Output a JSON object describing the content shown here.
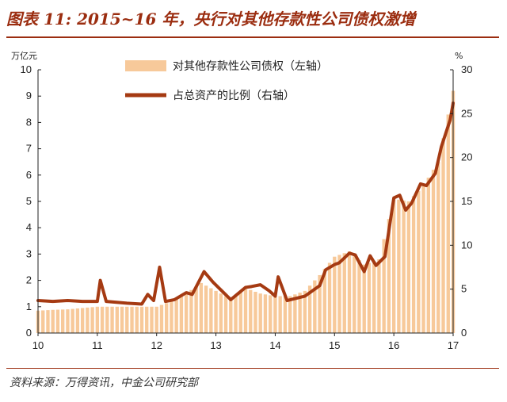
{
  "title": "图表 11: 2015~16 年，央行对其他存款性公司债权激增",
  "source": "资料来源：万得资讯，中金公司研究部",
  "chart_data": {
    "type": "bar+line",
    "left_axis": {
      "unit": "万亿元",
      "ylim": [
        0,
        10
      ],
      "ticks": [
        "0",
        "1",
        "2",
        "3",
        "4",
        "5",
        "6",
        "7",
        "8",
        "9",
        "10"
      ]
    },
    "right_axis": {
      "unit": "%",
      "ylim": [
        0,
        30
      ],
      "ticks": [
        "0",
        "5",
        "10",
        "15",
        "20",
        "25",
        "30"
      ]
    },
    "x_ticks": [
      "10",
      "11",
      "12",
      "13",
      "14",
      "15",
      "16",
      "17"
    ],
    "x_range": [
      2010.0,
      2017.0
    ],
    "legend": [
      {
        "label": "对其他存款性公司债权（左轴）",
        "color": "#f7c99a"
      },
      {
        "label": "占总资产的比例（右轴）",
        "color": "#a53a12"
      }
    ],
    "series": [
      {
        "name": "对其他存款性公司债权（左轴）",
        "axis": "left",
        "chart": "bar",
        "color": "#f7c99a",
        "x": [
          2010.0,
          2010.25,
          2010.5,
          2010.75,
          2011.0,
          2011.25,
          2011.5,
          2011.75,
          2012.0,
          2012.25,
          2012.5,
          2012.75,
          2013.0,
          2013.25,
          2013.5,
          2013.75,
          2014.0,
          2014.25,
          2014.5,
          2014.75,
          2015.0,
          2015.25,
          2015.5,
          2015.75,
          2016.0,
          2016.25,
          2016.5,
          2016.75,
          2017.0
        ],
        "values": [
          0.85,
          0.88,
          0.9,
          0.95,
          1.0,
          1.0,
          1.0,
          1.0,
          1.0,
          1.2,
          1.5,
          1.9,
          1.6,
          1.3,
          1.7,
          1.5,
          1.4,
          1.4,
          1.6,
          2.2,
          2.9,
          3.1,
          2.6,
          2.8,
          5.1,
          5.0,
          5.6,
          6.5,
          9.2
        ]
      },
      {
        "name": "占总资产的比例（右轴）",
        "axis": "right",
        "chart": "line",
        "color": "#a53a12",
        "x": [
          2010.0,
          2010.25,
          2010.5,
          2010.75,
          2011.0,
          2011.05,
          2011.15,
          2011.5,
          2011.75,
          2011.85,
          2011.95,
          2012.05,
          2012.15,
          2012.3,
          2012.5,
          2012.6,
          2012.8,
          2012.95,
          2013.25,
          2013.5,
          2013.6,
          2013.75,
          2013.9,
          2014.0,
          2014.05,
          2014.2,
          2014.5,
          2014.75,
          2014.85,
          2015.0,
          2015.08,
          2015.25,
          2015.35,
          2015.5,
          2015.6,
          2015.7,
          2015.85,
          2016.0,
          2016.1,
          2016.2,
          2016.3,
          2016.45,
          2016.55,
          2016.7,
          2016.8,
          2016.95,
          2017.0
        ],
        "values": [
          3.7,
          3.6,
          3.7,
          3.6,
          3.6,
          6.0,
          3.6,
          3.4,
          3.3,
          4.4,
          3.7,
          7.5,
          3.6,
          3.8,
          4.6,
          4.4,
          7.0,
          5.8,
          3.8,
          5.2,
          5.3,
          5.5,
          4.8,
          4.2,
          6.4,
          3.7,
          4.2,
          5.4,
          7.2,
          7.8,
          8.0,
          9.1,
          8.9,
          7.0,
          8.8,
          7.7,
          8.7,
          15.4,
          15.7,
          14.0,
          14.8,
          17.0,
          16.8,
          18.2,
          21.2,
          24.3,
          26.2
        ]
      }
    ]
  }
}
